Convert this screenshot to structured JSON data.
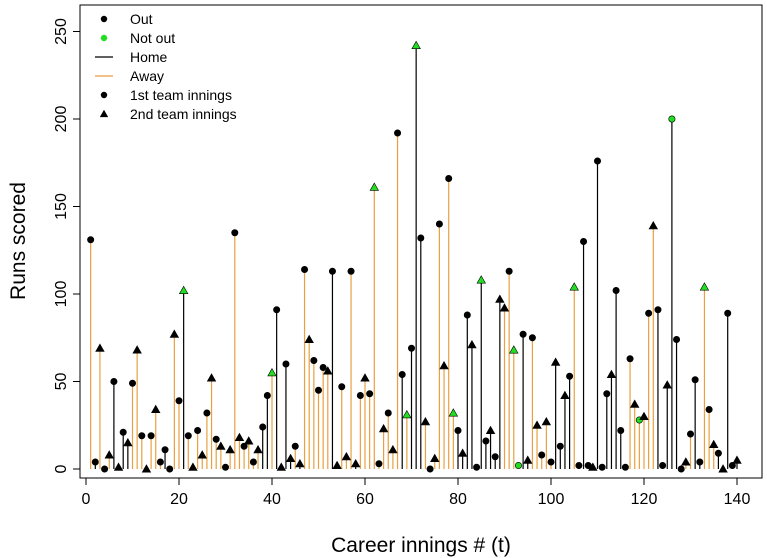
{
  "chart_data": {
    "type": "scatter",
    "title": "",
    "xlabel": "Career innings # (t)",
    "ylabel": "Runs scored",
    "xlim": [
      0,
      142
    ],
    "ylim": [
      0,
      260
    ],
    "xticks": [
      0,
      20,
      40,
      60,
      80,
      100,
      120,
      140
    ],
    "yticks": [
      0,
      50,
      100,
      150,
      200,
      250
    ],
    "colors": {
      "out": "#000000",
      "not_out": "#22dd22",
      "home": "#000000",
      "away": "#e8a040"
    },
    "legend": {
      "placement": "top-left",
      "entries": [
        {
          "label": "Out",
          "kind": "point",
          "shape": "circle",
          "color": "#000000"
        },
        {
          "label": "Not out",
          "kind": "point",
          "shape": "circle",
          "color": "#22dd22"
        },
        {
          "label": "Home",
          "kind": "line",
          "color": "#000000"
        },
        {
          "label": "Away",
          "kind": "line",
          "color": "#e8a040"
        },
        {
          "label": "1st team innings",
          "kind": "point",
          "shape": "circle",
          "color": "#000000"
        },
        {
          "label": "2nd team innings",
          "kind": "point",
          "shape": "triangle",
          "color": "#000000"
        }
      ]
    },
    "innings": [
      {
        "x": 1,
        "y": 131,
        "venue": "away",
        "out": true,
        "team_innings": 1
      },
      {
        "x": 2,
        "y": 4,
        "venue": "home",
        "out": true,
        "team_innings": 1
      },
      {
        "x": 3,
        "y": 69,
        "venue": "away",
        "out": true,
        "team_innings": 2
      },
      {
        "x": 4,
        "y": 0,
        "venue": "home",
        "out": true,
        "team_innings": 1
      },
      {
        "x": 5,
        "y": 8,
        "venue": "away",
        "out": true,
        "team_innings": 2
      },
      {
        "x": 6,
        "y": 50,
        "venue": "home",
        "out": true,
        "team_innings": 1
      },
      {
        "x": 7,
        "y": 1,
        "venue": "home",
        "out": true,
        "team_innings": 2
      },
      {
        "x": 8,
        "y": 21,
        "venue": "home",
        "out": true,
        "team_innings": 1
      },
      {
        "x": 9,
        "y": 15,
        "venue": "home",
        "out": true,
        "team_innings": 2
      },
      {
        "x": 10,
        "y": 49,
        "venue": "away",
        "out": true,
        "team_innings": 1
      },
      {
        "x": 11,
        "y": 68,
        "venue": "away",
        "out": true,
        "team_innings": 2
      },
      {
        "x": 12,
        "y": 19,
        "venue": "away",
        "out": true,
        "team_innings": 1
      },
      {
        "x": 13,
        "y": 0,
        "venue": "home",
        "out": true,
        "team_innings": 2
      },
      {
        "x": 14,
        "y": 19,
        "venue": "away",
        "out": true,
        "team_innings": 1
      },
      {
        "x": 15,
        "y": 34,
        "venue": "away",
        "out": true,
        "team_innings": 2
      },
      {
        "x": 16,
        "y": 4,
        "venue": "away",
        "out": true,
        "team_innings": 1
      },
      {
        "x": 17,
        "y": 11,
        "venue": "home",
        "out": true,
        "team_innings": 1
      },
      {
        "x": 18,
        "y": 0,
        "venue": "home",
        "out": true,
        "team_innings": 1
      },
      {
        "x": 19,
        "y": 77,
        "venue": "away",
        "out": true,
        "team_innings": 2
      },
      {
        "x": 20,
        "y": 39,
        "venue": "away",
        "out": true,
        "team_innings": 1
      },
      {
        "x": 21,
        "y": 102,
        "venue": "home",
        "out": false,
        "team_innings": 2
      },
      {
        "x": 22,
        "y": 19,
        "venue": "away",
        "out": true,
        "team_innings": 1
      },
      {
        "x": 23,
        "y": 1,
        "venue": "home",
        "out": true,
        "team_innings": 2
      },
      {
        "x": 24,
        "y": 22,
        "venue": "away",
        "out": true,
        "team_innings": 1
      },
      {
        "x": 25,
        "y": 8,
        "venue": "away",
        "out": true,
        "team_innings": 2
      },
      {
        "x": 26,
        "y": 32,
        "venue": "away",
        "out": true,
        "team_innings": 1
      },
      {
        "x": 27,
        "y": 52,
        "venue": "away",
        "out": true,
        "team_innings": 2
      },
      {
        "x": 28,
        "y": 17,
        "venue": "away",
        "out": true,
        "team_innings": 1
      },
      {
        "x": 29,
        "y": 13,
        "venue": "away",
        "out": true,
        "team_innings": 2
      },
      {
        "x": 30,
        "y": 1,
        "venue": "home",
        "out": true,
        "team_innings": 1
      },
      {
        "x": 31,
        "y": 11,
        "venue": "away",
        "out": true,
        "team_innings": 2
      },
      {
        "x": 32,
        "y": 135,
        "venue": "away",
        "out": true,
        "team_innings": 1
      },
      {
        "x": 33,
        "y": 18,
        "venue": "away",
        "out": true,
        "team_innings": 2
      },
      {
        "x": 34,
        "y": 13,
        "venue": "away",
        "out": true,
        "team_innings": 1
      },
      {
        "x": 35,
        "y": 16,
        "venue": "away",
        "out": true,
        "team_innings": 2
      },
      {
        "x": 36,
        "y": 4,
        "venue": "away",
        "out": true,
        "team_innings": 1
      },
      {
        "x": 37,
        "y": 11,
        "venue": "away",
        "out": true,
        "team_innings": 2
      },
      {
        "x": 38,
        "y": 24,
        "venue": "home",
        "out": true,
        "team_innings": 1
      },
      {
        "x": 39,
        "y": 42,
        "venue": "home",
        "out": true,
        "team_innings": 1
      },
      {
        "x": 40,
        "y": 55,
        "venue": "away",
        "out": false,
        "team_innings": 2
      },
      {
        "x": 41,
        "y": 91,
        "venue": "home",
        "out": true,
        "team_innings": 1
      },
      {
        "x": 42,
        "y": 1,
        "venue": "home",
        "out": true,
        "team_innings": 2
      },
      {
        "x": 43,
        "y": 60,
        "venue": "home",
        "out": true,
        "team_innings": 1
      },
      {
        "x": 44,
        "y": 6,
        "venue": "home",
        "out": true,
        "team_innings": 2
      },
      {
        "x": 45,
        "y": 13,
        "venue": "away",
        "out": true,
        "team_innings": 1
      },
      {
        "x": 46,
        "y": 3,
        "venue": "home",
        "out": true,
        "team_innings": 2
      },
      {
        "x": 47,
        "y": 114,
        "venue": "away",
        "out": true,
        "team_innings": 1
      },
      {
        "x": 48,
        "y": 74,
        "venue": "away",
        "out": true,
        "team_innings": 2
      },
      {
        "x": 49,
        "y": 62,
        "venue": "away",
        "out": true,
        "team_innings": 1
      },
      {
        "x": 50,
        "y": 45,
        "venue": "away",
        "out": true,
        "team_innings": 1
      },
      {
        "x": 51,
        "y": 58,
        "venue": "away",
        "out": true,
        "team_innings": 1
      },
      {
        "x": 52,
        "y": 56,
        "venue": "away",
        "out": true,
        "team_innings": 2
      },
      {
        "x": 53,
        "y": 113,
        "venue": "home",
        "out": true,
        "team_innings": 1
      },
      {
        "x": 54,
        "y": 2,
        "venue": "home",
        "out": true,
        "team_innings": 2
      },
      {
        "x": 55,
        "y": 47,
        "venue": "away",
        "out": true,
        "team_innings": 1
      },
      {
        "x": 56,
        "y": 7,
        "venue": "away",
        "out": true,
        "team_innings": 2
      },
      {
        "x": 57,
        "y": 113,
        "venue": "away",
        "out": true,
        "team_innings": 1
      },
      {
        "x": 58,
        "y": 3,
        "venue": "home",
        "out": true,
        "team_innings": 2
      },
      {
        "x": 59,
        "y": 42,
        "venue": "away",
        "out": true,
        "team_innings": 1
      },
      {
        "x": 60,
        "y": 52,
        "venue": "away",
        "out": true,
        "team_innings": 2
      },
      {
        "x": 61,
        "y": 43,
        "venue": "away",
        "out": true,
        "team_innings": 1
      },
      {
        "x": 62,
        "y": 161,
        "venue": "away",
        "out": false,
        "team_innings": 2
      },
      {
        "x": 63,
        "y": 3,
        "venue": "away",
        "out": true,
        "team_innings": 1
      },
      {
        "x": 64,
        "y": 23,
        "venue": "away",
        "out": true,
        "team_innings": 2
      },
      {
        "x": 65,
        "y": 32,
        "venue": "away",
        "out": true,
        "team_innings": 1
      },
      {
        "x": 66,
        "y": 11,
        "venue": "away",
        "out": true,
        "team_innings": 2
      },
      {
        "x": 67,
        "y": 192,
        "venue": "away",
        "out": true,
        "team_innings": 1
      },
      {
        "x": 68,
        "y": 54,
        "venue": "home",
        "out": true,
        "team_innings": 1
      },
      {
        "x": 69,
        "y": 31,
        "venue": "away",
        "out": false,
        "team_innings": 2
      },
      {
        "x": 70,
        "y": 69,
        "venue": "home",
        "out": true,
        "team_innings": 1
      },
      {
        "x": 71,
        "y": 242,
        "venue": "home",
        "out": false,
        "team_innings": 2
      },
      {
        "x": 72,
        "y": 132,
        "venue": "home",
        "out": true,
        "team_innings": 1
      },
      {
        "x": 73,
        "y": 27,
        "venue": "away",
        "out": true,
        "team_innings": 2
      },
      {
        "x": 74,
        "y": 0,
        "venue": "home",
        "out": true,
        "team_innings": 1
      },
      {
        "x": 75,
        "y": 6,
        "venue": "away",
        "out": true,
        "team_innings": 2
      },
      {
        "x": 76,
        "y": 140,
        "venue": "away",
        "out": true,
        "team_innings": 1
      },
      {
        "x": 77,
        "y": 59,
        "venue": "away",
        "out": true,
        "team_innings": 2
      },
      {
        "x": 78,
        "y": 166,
        "venue": "away",
        "out": true,
        "team_innings": 1
      },
      {
        "x": 79,
        "y": 32,
        "venue": "away",
        "out": false,
        "team_innings": 2
      },
      {
        "x": 80,
        "y": 22,
        "venue": "home",
        "out": true,
        "team_innings": 1
      },
      {
        "x": 81,
        "y": 9,
        "venue": "home",
        "out": true,
        "team_innings": 2
      },
      {
        "x": 82,
        "y": 88,
        "venue": "home",
        "out": true,
        "team_innings": 1
      },
      {
        "x": 83,
        "y": 71,
        "venue": "home",
        "out": true,
        "team_innings": 2
      },
      {
        "x": 84,
        "y": 1,
        "venue": "home",
        "out": true,
        "team_innings": 1
      },
      {
        "x": 85,
        "y": 108,
        "venue": "home",
        "out": false,
        "team_innings": 2
      },
      {
        "x": 86,
        "y": 16,
        "venue": "home",
        "out": true,
        "team_innings": 1
      },
      {
        "x": 87,
        "y": 22,
        "venue": "home",
        "out": true,
        "team_innings": 2
      },
      {
        "x": 88,
        "y": 7,
        "venue": "home",
        "out": true,
        "team_innings": 1
      },
      {
        "x": 89,
        "y": 97,
        "venue": "home",
        "out": true,
        "team_innings": 2
      },
      {
        "x": 90,
        "y": 92,
        "venue": "away",
        "out": true,
        "team_innings": 2
      },
      {
        "x": 91,
        "y": 113,
        "venue": "away",
        "out": true,
        "team_innings": 1
      },
      {
        "x": 92,
        "y": 68,
        "venue": "away",
        "out": false,
        "team_innings": 2
      },
      {
        "x": 93,
        "y": 2,
        "venue": "away",
        "out": false,
        "team_innings": 1
      },
      {
        "x": 94,
        "y": 77,
        "venue": "home",
        "out": true,
        "team_innings": 1
      },
      {
        "x": 95,
        "y": 5,
        "venue": "home",
        "out": true,
        "team_innings": 2
      },
      {
        "x": 96,
        "y": 75,
        "venue": "away",
        "out": true,
        "team_innings": 1
      },
      {
        "x": 97,
        "y": 25,
        "venue": "away",
        "out": true,
        "team_innings": 2
      },
      {
        "x": 98,
        "y": 8,
        "venue": "away",
        "out": true,
        "team_innings": 1
      },
      {
        "x": 99,
        "y": 27,
        "venue": "away",
        "out": true,
        "team_innings": 2
      },
      {
        "x": 100,
        "y": 4,
        "venue": "away",
        "out": true,
        "team_innings": 1
      },
      {
        "x": 101,
        "y": 61,
        "venue": "home",
        "out": true,
        "team_innings": 2
      },
      {
        "x": 102,
        "y": 13,
        "venue": "home",
        "out": true,
        "team_innings": 1
      },
      {
        "x": 103,
        "y": 42,
        "venue": "home",
        "out": true,
        "team_innings": 2
      },
      {
        "x": 104,
        "y": 53,
        "venue": "home",
        "out": true,
        "team_innings": 1
      },
      {
        "x": 105,
        "y": 104,
        "venue": "away",
        "out": false,
        "team_innings": 2
      },
      {
        "x": 106,
        "y": 2,
        "venue": "home",
        "out": true,
        "team_innings": 1
      },
      {
        "x": 107,
        "y": 130,
        "venue": "home",
        "out": true,
        "team_innings": 1
      },
      {
        "x": 108,
        "y": 2,
        "venue": "home",
        "out": true,
        "team_innings": 1
      },
      {
        "x": 109,
        "y": 1,
        "venue": "home",
        "out": true,
        "team_innings": 2
      },
      {
        "x": 110,
        "y": 176,
        "venue": "home",
        "out": true,
        "team_innings": 1
      },
      {
        "x": 111,
        "y": 1,
        "venue": "home",
        "out": true,
        "team_innings": 1
      },
      {
        "x": 112,
        "y": 43,
        "venue": "home",
        "out": true,
        "team_innings": 1
      },
      {
        "x": 113,
        "y": 54,
        "venue": "home",
        "out": true,
        "team_innings": 2
      },
      {
        "x": 114,
        "y": 102,
        "venue": "home",
        "out": true,
        "team_innings": 1
      },
      {
        "x": 115,
        "y": 22,
        "venue": "home",
        "out": true,
        "team_innings": 1
      },
      {
        "x": 116,
        "y": 1,
        "venue": "away",
        "out": true,
        "team_innings": 1
      },
      {
        "x": 117,
        "y": 63,
        "venue": "away",
        "out": true,
        "team_innings": 1
      },
      {
        "x": 118,
        "y": 37,
        "venue": "away",
        "out": true,
        "team_innings": 2
      },
      {
        "x": 119,
        "y": 28,
        "venue": "away",
        "out": false,
        "team_innings": 1
      },
      {
        "x": 120,
        "y": 30,
        "venue": "away",
        "out": true,
        "team_innings": 2
      },
      {
        "x": 121,
        "y": 89,
        "venue": "away",
        "out": true,
        "team_innings": 1
      },
      {
        "x": 122,
        "y": 139,
        "venue": "away",
        "out": true,
        "team_innings": 2
      },
      {
        "x": 123,
        "y": 91,
        "venue": "home",
        "out": true,
        "team_innings": 1
      },
      {
        "x": 124,
        "y": 2,
        "venue": "home",
        "out": true,
        "team_innings": 1
      },
      {
        "x": 125,
        "y": 48,
        "venue": "home",
        "out": true,
        "team_innings": 2
      },
      {
        "x": 126,
        "y": 200,
        "venue": "home",
        "out": false,
        "team_innings": 1
      },
      {
        "x": 127,
        "y": 74,
        "venue": "home",
        "out": true,
        "team_innings": 1
      },
      {
        "x": 128,
        "y": 0,
        "venue": "home",
        "out": true,
        "team_innings": 1
      },
      {
        "x": 129,
        "y": 4,
        "venue": "away",
        "out": true,
        "team_innings": 2
      },
      {
        "x": 130,
        "y": 20,
        "venue": "away",
        "out": true,
        "team_innings": 1
      },
      {
        "x": 131,
        "y": 51,
        "venue": "home",
        "out": true,
        "team_innings": 1
      },
      {
        "x": 132,
        "y": 4,
        "venue": "home",
        "out": true,
        "team_innings": 1
      },
      {
        "x": 133,
        "y": 104,
        "venue": "away",
        "out": false,
        "team_innings": 2
      },
      {
        "x": 134,
        "y": 34,
        "venue": "away",
        "out": true,
        "team_innings": 1
      },
      {
        "x": 135,
        "y": 14,
        "venue": "away",
        "out": true,
        "team_innings": 2
      },
      {
        "x": 136,
        "y": 9,
        "venue": "home",
        "out": true,
        "team_innings": 1
      },
      {
        "x": 137,
        "y": 0,
        "venue": "home",
        "out": true,
        "team_innings": 2
      },
      {
        "x": 138,
        "y": 89,
        "venue": "home",
        "out": true,
        "team_innings": 1
      },
      {
        "x": 139,
        "y": 2,
        "venue": "home",
        "out": true,
        "team_innings": 1
      },
      {
        "x": 140,
        "y": 5,
        "venue": "home",
        "out": true,
        "team_innings": 2
      }
    ]
  }
}
